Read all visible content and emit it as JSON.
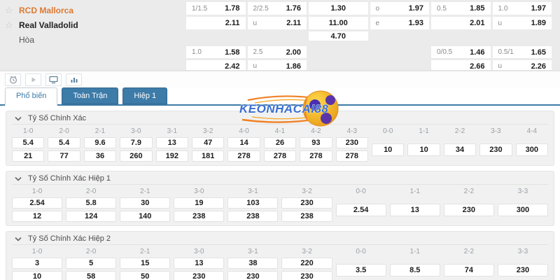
{
  "match": {
    "home_team": "RCD Mallorca",
    "away_team": "Real Valladolid",
    "draw_label": "Hòa",
    "home_color": "#dd7a33"
  },
  "top_odds": {
    "block1": {
      "row1": [
        {
          "c": 1,
          "label": "1/1.5",
          "value": "1.78"
        },
        {
          "c": 2,
          "label": "2/2.5",
          "value": "1.76"
        },
        {
          "c": 3,
          "label": "",
          "value": "1.30",
          "center": true
        },
        {
          "c": 4,
          "label": "o",
          "value": "1.97"
        },
        {
          "c": 5,
          "label": "0.5",
          "value": "1.85"
        },
        {
          "c": 6,
          "label": "1.0",
          "value": "1.97"
        }
      ],
      "row2": [
        {
          "c": 1,
          "label": "",
          "value": "2.11"
        },
        {
          "c": 2,
          "label": "u",
          "value": "2.11"
        },
        {
          "c": 3,
          "label": "",
          "value": "11.00",
          "center": true
        },
        {
          "c": 4,
          "label": "e",
          "value": "1.93"
        },
        {
          "c": 5,
          "label": "",
          "value": "2.01"
        },
        {
          "c": 6,
          "label": "u",
          "value": "1.89"
        }
      ],
      "row3": [
        {
          "c": 3,
          "label": "",
          "value": "4.70",
          "center": true
        }
      ]
    },
    "block2": {
      "row1": [
        {
          "c": 1,
          "label": "1.0",
          "value": "1.58"
        },
        {
          "c": 2,
          "label": "2.5",
          "value": "2.00"
        },
        {
          "c": 5,
          "label": "0/0.5",
          "value": "1.46"
        },
        {
          "c": 6,
          "label": "0.5/1",
          "value": "1.65"
        }
      ],
      "row2": [
        {
          "c": 1,
          "label": "",
          "value": "2.42"
        },
        {
          "c": 2,
          "label": "u",
          "value": "1.86"
        },
        {
          "c": 5,
          "label": "",
          "value": "2.66"
        },
        {
          "c": 6,
          "label": "u",
          "value": "2.26"
        }
      ]
    }
  },
  "toolbar": {
    "icons": [
      "clock-icon",
      "play-icon",
      "monitor-icon",
      "chart-icon"
    ]
  },
  "tabs": [
    {
      "label": "Phổ biến",
      "active": true
    },
    {
      "label": "Toàn Trận",
      "active": false
    },
    {
      "label": "Hiệp 1",
      "active": false
    }
  ],
  "logo": {
    "text": "KEONHACAI88"
  },
  "sections": [
    {
      "title": "Tỷ Số Chính Xác",
      "score_cols": [
        "1-0",
        "2-0",
        "2-1",
        "3-0",
        "3-1",
        "3-2",
        "4-0",
        "4-1",
        "4-2",
        "4-3"
      ],
      "row1": [
        "5.4",
        "5.4",
        "9.6",
        "7.9",
        "13",
        "47",
        "14",
        "26",
        "93",
        "230"
      ],
      "row2": [
        "21",
        "77",
        "36",
        "260",
        "192",
        "181",
        "278",
        "278",
        "278",
        "278"
      ],
      "draw_cols": [
        "0-0",
        "1-1",
        "2-2",
        "3-3",
        "4-4"
      ],
      "draw_vals": [
        "10",
        "10",
        "34",
        "230",
        "300"
      ]
    },
    {
      "title": "Tỷ Số Chính Xác Hiệp 1",
      "score_cols": [
        "1-0",
        "2-0",
        "2-1",
        "3-0",
        "3-1",
        "3-2"
      ],
      "row1": [
        "2.54",
        "5.8",
        "30",
        "19",
        "103",
        "230"
      ],
      "row2": [
        "12",
        "124",
        "140",
        "238",
        "238",
        "238"
      ],
      "draw_cols": [
        "0-0",
        "1-1",
        "2-2",
        "3-3"
      ],
      "draw_vals": [
        "2.54",
        "13",
        "230",
        "300"
      ]
    },
    {
      "title": "Tỷ Số Chính Xác Hiệp 2",
      "score_cols": [
        "1-0",
        "2-0",
        "2-1",
        "3-0",
        "3-1",
        "3-2"
      ],
      "row1": [
        "3",
        "5",
        "15",
        "13",
        "38",
        "220"
      ],
      "row2": [
        "10",
        "58",
        "50",
        "230",
        "230",
        "230"
      ],
      "draw_cols": [
        "0-0",
        "1-1",
        "2-2",
        "3-3"
      ],
      "draw_vals": [
        "3.5",
        "8.5",
        "74",
        "230"
      ]
    }
  ],
  "colors": {
    "tab_blue": "#3d7ba8",
    "top_bg": "#ebebeb",
    "section_bg": "#f1f1f1",
    "home_orange": "#dd7a33",
    "logo_blue": "#3b6fd0",
    "logo_orange": "#f08125",
    "ball_yellow": "#f3b92c",
    "ball_purple": "#5b35a8"
  }
}
